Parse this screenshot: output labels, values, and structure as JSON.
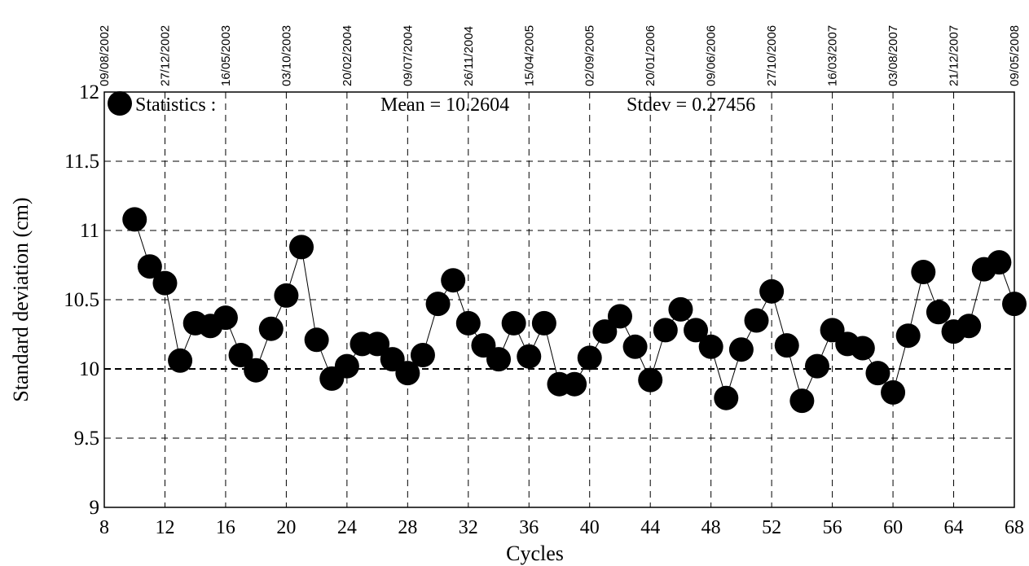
{
  "chart_data": {
    "type": "line",
    "title": "",
    "xlabel": "Cycles",
    "ylabel": "Standard deviation (cm)",
    "xlim": [
      8,
      68
    ],
    "ylim": [
      9,
      12
    ],
    "x_ticks": [
      8,
      12,
      16,
      20,
      24,
      28,
      32,
      36,
      40,
      44,
      48,
      52,
      56,
      60,
      64,
      68
    ],
    "y_ticks": [
      9,
      9.5,
      10,
      10.5,
      11,
      11.5,
      12
    ],
    "y_tick_labels": [
      "9",
      "9.5",
      "10",
      "10.5",
      "11",
      "11.5",
      "12"
    ],
    "top_axis_dates": [
      {
        "cycle": 8,
        "label": "09/08/2002"
      },
      {
        "cycle": 12,
        "label": "27/12/2002"
      },
      {
        "cycle": 16,
        "label": "16/05/2003"
      },
      {
        "cycle": 20,
        "label": "03/10/2003"
      },
      {
        "cycle": 24,
        "label": "20/02/2004"
      },
      {
        "cycle": 28,
        "label": "09/07/2004"
      },
      {
        "cycle": 32,
        "label": "26/11/2004"
      },
      {
        "cycle": 36,
        "label": "15/04/2005"
      },
      {
        "cycle": 40,
        "label": "02/09/2005"
      },
      {
        "cycle": 44,
        "label": "20/01/2006"
      },
      {
        "cycle": 48,
        "label": "09/06/2006"
      },
      {
        "cycle": 52,
        "label": "27/10/2006"
      },
      {
        "cycle": 56,
        "label": "16/03/2007"
      },
      {
        "cycle": 60,
        "label": "03/08/2007"
      },
      {
        "cycle": 64,
        "label": "21/12/2007"
      },
      {
        "cycle": 68,
        "label": "09/05/2008"
      }
    ],
    "grid": true,
    "reference_line": 10,
    "legend": {
      "label": "Statistics :",
      "mean_text": "Mean = 10.2604",
      "stdev_text": "Stdev = 0.27456",
      "placement": "top"
    },
    "series": [
      {
        "x": [
          10,
          11,
          12,
          13,
          14,
          15,
          16,
          17,
          18,
          19,
          20,
          21,
          22,
          23,
          24,
          25,
          26,
          27,
          28,
          29,
          30,
          31,
          32,
          33,
          34,
          35,
          36,
          37,
          38,
          39,
          40,
          41,
          42,
          43,
          44,
          45,
          46,
          47,
          48,
          49,
          50,
          51,
          52,
          53,
          54,
          55,
          56,
          57,
          58,
          59,
          60,
          61,
          62,
          63,
          64,
          65,
          66,
          67,
          68
        ],
        "values": [
          11.08,
          10.74,
          10.62,
          10.06,
          10.33,
          10.31,
          10.37,
          10.1,
          9.99,
          10.29,
          10.53,
          10.88,
          10.21,
          9.93,
          10.02,
          10.18,
          10.18,
          10.07,
          9.97,
          10.1,
          10.47,
          10.64,
          10.33,
          10.17,
          10.07,
          10.33,
          10.09,
          10.33,
          9.89,
          9.89,
          10.08,
          10.27,
          10.38,
          10.16,
          9.92,
          10.28,
          10.43,
          10.28,
          10.16,
          9.79,
          10.14,
          10.35,
          10.56,
          10.17,
          9.77,
          10.02,
          10.28,
          10.18,
          10.15,
          9.97,
          9.83,
          10.24,
          10.7,
          10.41,
          10.27,
          10.31,
          10.72,
          10.77,
          10.47
        ]
      }
    ]
  }
}
